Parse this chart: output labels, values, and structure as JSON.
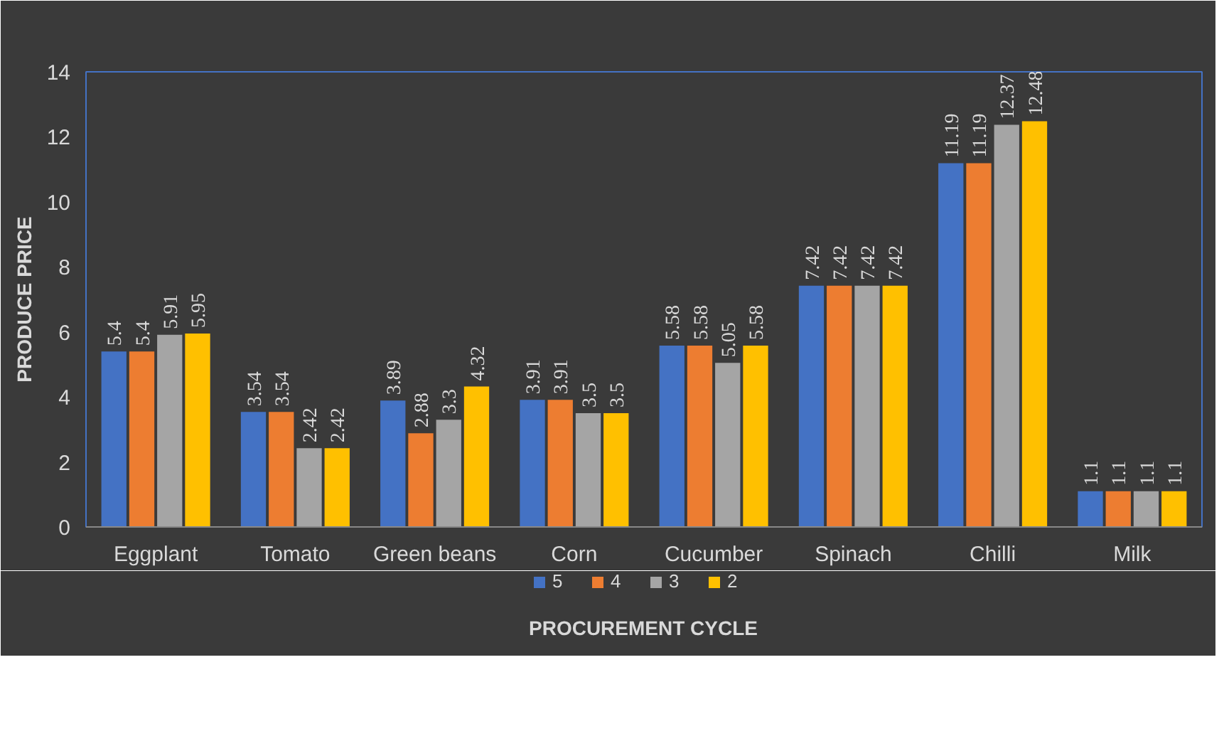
{
  "chart_data": {
    "type": "bar",
    "xlabel": "PROCUREMENT CYCLE",
    "ylabel": "PRODUCE PRICE",
    "categories": [
      "Eggplant",
      "Tomato",
      "Green beans",
      "Corn",
      "Cucumber",
      "Spinach",
      "Chilli",
      "Milk"
    ],
    "series": [
      {
        "name": "5",
        "color": "#4472c4",
        "values": [
          5.4,
          3.54,
          3.89,
          3.91,
          5.58,
          7.42,
          11.19,
          1.1
        ]
      },
      {
        "name": "4",
        "color": "#ed7d31",
        "values": [
          5.4,
          3.54,
          2.88,
          3.91,
          5.58,
          7.42,
          11.19,
          1.1
        ]
      },
      {
        "name": "3",
        "color": "#a5a5a5",
        "values": [
          5.91,
          2.42,
          3.3,
          3.5,
          5.05,
          7.42,
          12.37,
          1.1
        ]
      },
      {
        "name": "2",
        "color": "#ffc000",
        "values": [
          5.95,
          2.42,
          4.32,
          3.5,
          5.58,
          7.42,
          12.48,
          1.1
        ]
      }
    ],
    "ylim": [
      0,
      14
    ],
    "yticks": [
      0,
      2,
      4,
      6,
      8,
      10,
      12,
      14
    ],
    "grid": false,
    "legend": "bottom",
    "data_labels": true
  }
}
